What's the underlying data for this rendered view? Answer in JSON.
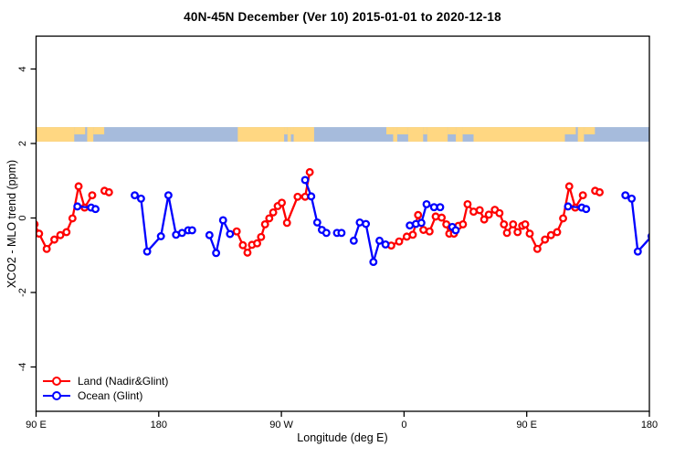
{
  "title": "40N-45N December (Ver 10)   2015-01-01 to 2020-12-18",
  "legend": {
    "items": [
      {
        "label": "Land (Nadir&Glint)",
        "color": "#ff0000"
      },
      {
        "label": "Ocean (Glint)",
        "color": "#0000ff"
      }
    ]
  },
  "map_band": {
    "description": "land-ocean strip map along 40N-45N",
    "land_color": "#ffd782",
    "ocean_color": "#a6bbdc",
    "y_range_ppm": [
      2.05,
      2.44
    ]
  },
  "chart_data": {
    "type": "line",
    "title": "40N-45N December (Ver 10)   2015-01-01 to 2020-12-18",
    "xlabel": "Longitude (deg E)",
    "ylabel": "XCO2 - MLO trend (ppm)",
    "x_axis_deg_range": [
      90,
      540
    ],
    "wrap_repeat_deg": 360,
    "ylim": [
      -5,
      5
    ],
    "grid": false,
    "legend_position": "bottom-left-inside",
    "x_ticks": [
      {
        "pos": 90,
        "label": "90 E"
      },
      {
        "pos": 180,
        "label": "180"
      },
      {
        "pos": 270,
        "label": "90 W"
      },
      {
        "pos": 360,
        "label": "0"
      },
      {
        "pos": 450,
        "label": "90 E"
      },
      {
        "pos": 540,
        "label": "180"
      }
    ],
    "y_ticks": [
      {
        "pos": -4,
        "label": "-4"
      },
      {
        "pos": -2,
        "label": "-2"
      },
      {
        "pos": 0,
        "label": "0"
      },
      {
        "pos": 2,
        "label": "2"
      },
      {
        "pos": 4,
        "label": "4"
      }
    ],
    "land_band_segments": [
      {
        "a": 90,
        "b": 118,
        "h": "full"
      },
      {
        "a": 118,
        "b": 126,
        "h": "top"
      },
      {
        "a": 127.5,
        "b": 132,
        "h": "full"
      },
      {
        "a": 132,
        "b": 140,
        "h": "top"
      },
      {
        "a": 238,
        "b": 272,
        "h": "full"
      },
      {
        "a": 272,
        "b": 274.5,
        "h": "top"
      },
      {
        "a": 274.5,
        "b": 277,
        "h": "full"
      },
      {
        "a": 277,
        "b": 279,
        "h": "top"
      },
      {
        "a": 279,
        "b": 294,
        "h": "full"
      },
      {
        "a": 347,
        "b": 352,
        "h": "top"
      },
      {
        "a": 352,
        "b": 355,
        "h": "full"
      },
      {
        "a": 355,
        "b": 363,
        "h": "top"
      },
      {
        "a": 363,
        "b": 374,
        "h": "full"
      },
      {
        "a": 374,
        "b": 377,
        "h": "top"
      },
      {
        "a": 377,
        "b": 392,
        "h": "full"
      },
      {
        "a": 392,
        "b": 398,
        "h": "top"
      },
      {
        "a": 398,
        "b": 403,
        "h": "full"
      },
      {
        "a": 403,
        "b": 411,
        "h": "top"
      },
      {
        "a": 411,
        "b": 478,
        "h": "full"
      },
      {
        "a": 478,
        "b": 486,
        "h": "top"
      },
      {
        "a": 487.5,
        "b": 492,
        "h": "full"
      },
      {
        "a": 492,
        "b": 500,
        "h": "top"
      }
    ],
    "series": [
      {
        "name": "Land (Nadir&Glint)",
        "color": "#ff0000",
        "segments": [
          [
            [
              237.2,
              -0.36
            ],
            [
              241.7,
              -0.73
            ],
            [
              245.1,
              -0.93
            ],
            [
              248.4,
              -0.72
            ],
            [
              252.2,
              -0.68
            ],
            [
              255.1,
              -0.51
            ],
            [
              258.0,
              -0.17
            ],
            [
              261.1,
              -0.01
            ],
            [
              264.0,
              0.15
            ],
            [
              267.3,
              0.32
            ],
            [
              270.3,
              0.41
            ],
            [
              274.1,
              -0.13
            ],
            [
              281.9,
              0.57
            ],
            [
              287.4,
              0.57
            ],
            [
              290.8,
              1.23
            ]
          ],
          [
            [
              350.6,
              -0.74
            ],
            [
              356.4,
              -0.63
            ],
            [
              362.0,
              -0.5
            ],
            [
              366.4,
              -0.45
            ],
            [
              370.3,
              0.08
            ],
            [
              374.2,
              -0.32
            ],
            [
              378.7,
              -0.36
            ],
            [
              383.2,
              0.04
            ],
            [
              387.6,
              0.01
            ],
            [
              391.0,
              -0.17
            ],
            [
              393.2,
              -0.42
            ],
            [
              396.6,
              -0.42
            ],
            [
              399.9,
              -0.21
            ],
            [
              403.2,
              -0.17
            ],
            [
              406.6,
              0.37
            ],
            [
              411.0,
              0.17
            ],
            [
              415.5,
              0.21
            ],
            [
              418.8,
              -0.04
            ],
            [
              422.2,
              0.09
            ],
            [
              426.6,
              0.22
            ],
            [
              430.0,
              0.13
            ],
            [
              433.3,
              -0.17
            ],
            [
              435.5,
              -0.4
            ],
            [
              440.0,
              -0.17
            ],
            [
              443.3,
              -0.38
            ],
            [
              446.7,
              -0.21
            ],
            [
              448.9,
              -0.17
            ],
            [
              452.2,
              -0.42
            ],
            [
              457.8,
              -0.83
            ],
            [
              463.4,
              -0.58
            ],
            [
              467.8,
              -0.46
            ],
            [
              472.3,
              -0.38
            ],
            [
              476.7,
              -0.01
            ],
            [
              481.2,
              0.85
            ],
            [
              485.6,
              0.28
            ],
            [
              491.2,
              0.61
            ]
          ],
          [
            [
              500.2,
              0.73
            ],
            [
              503.5,
              0.69
            ]
          ]
        ]
      },
      {
        "name": "Ocean (Glint)",
        "color": "#0000ff",
        "segments": [
          [
            [
              120.3,
              0.31
            ],
            [
              130.4,
              0.28
            ],
            [
              133.6,
              0.24
            ]
          ],
          [
            [
              162.4,
              0.61
            ],
            [
              167.0,
              0.52
            ],
            [
              171.5,
              -0.9
            ],
            [
              181.6,
              -0.49
            ],
            [
              187.1,
              0.61
            ],
            [
              192.7,
              -0.45
            ],
            [
              197.1,
              -0.4
            ],
            [
              201.6,
              -0.33
            ],
            [
              204.5,
              -0.33
            ]
          ],
          [
            [
              217.2,
              -0.46
            ],
            [
              222.1,
              -0.94
            ],
            [
              227.2,
              -0.06
            ],
            [
              232.3,
              -0.43
            ]
          ],
          [
            [
              287.4,
              1.02
            ],
            [
              291.9,
              0.58
            ],
            [
              296.3,
              -0.12
            ],
            [
              299.7,
              -0.32
            ],
            [
              303.0,
              -0.4
            ]
          ],
          [
            [
              310.8,
              -0.4
            ],
            [
              314.1,
              -0.4
            ]
          ],
          [
            [
              323.1,
              -0.61
            ],
            [
              327.5,
              -0.12
            ],
            [
              332.0,
              -0.16
            ],
            [
              337.5,
              -1.18
            ],
            [
              342.0,
              -0.61
            ],
            [
              346.4,
              -0.71
            ]
          ],
          [
            [
              364.2,
              -0.2
            ],
            [
              368.7,
              -0.16
            ],
            [
              372.7,
              -0.13
            ],
            [
              376.5,
              0.37
            ],
            [
              382.0,
              0.29
            ],
            [
              386.5,
              0.29
            ]
          ],
          [
            [
              395.4,
              -0.24
            ],
            [
              397.9,
              -0.33
            ]
          ]
        ]
      }
    ]
  }
}
